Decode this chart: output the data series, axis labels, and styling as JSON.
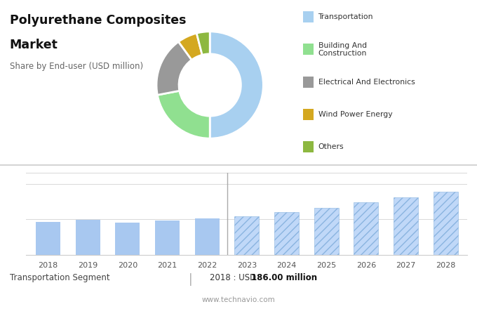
{
  "title_line1": "Polyurethane Composites",
  "title_line2": "Market",
  "subtitle": "Share by End-user (USD million)",
  "bg_top": "#e6e6e6",
  "bg_bottom": "#ffffff",
  "donut_values": [
    50,
    22,
    18,
    6,
    4
  ],
  "donut_colors": [
    "#a8d0f0",
    "#90e090",
    "#999999",
    "#d4a820",
    "#8db840"
  ],
  "donut_labels": [
    "Transportation",
    "Building And\nConstruction",
    "Electrical And Electronics",
    "Wind Power Energy",
    "Others"
  ],
  "bar_years": [
    2018,
    2019,
    2020,
    2021,
    2022
  ],
  "bar_values": [
    186,
    196,
    183,
    192,
    205
  ],
  "forecast_years": [
    2023,
    2024,
    2025,
    2026,
    2027,
    2028
  ],
  "forecast_values": [
    218,
    240,
    265,
    295,
    325,
    355
  ],
  "bar_color_solid": "#a8c8f0",
  "bar_color_hatch": "#c0d8f8",
  "hatch_pattern": "///",
  "footer_left": "Transportation Segment",
  "footer_mid": "|",
  "footer_year_label": "2018 : USD ",
  "footer_value": "186.00 million",
  "footer_url": "www.technavio.com",
  "grid_color": "#d8d8d8",
  "separator_color": "#cccccc"
}
